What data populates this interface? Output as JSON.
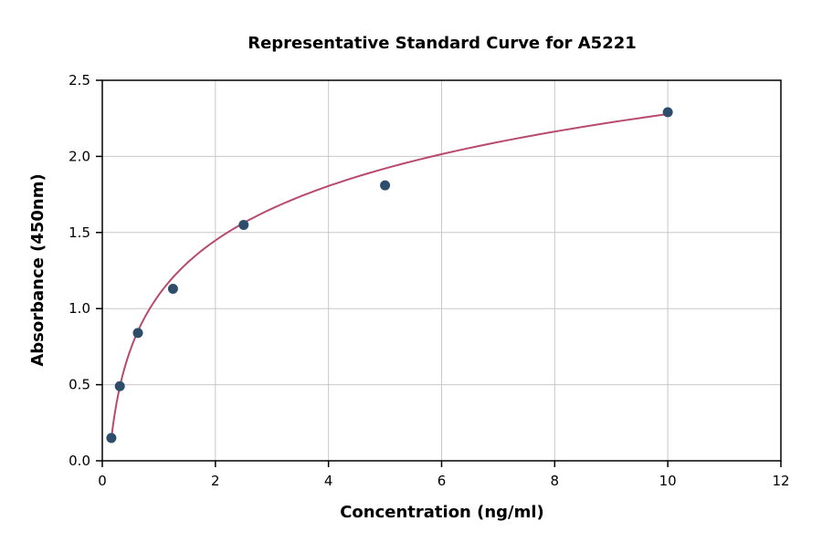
{
  "chart_data": {
    "type": "scatter",
    "title": "Representative Standard Curve for A5221",
    "xlabel": "Concentration (ng/ml)",
    "ylabel": "Absorbance (450nm)",
    "xlim": [
      0,
      12
    ],
    "ylim": [
      0,
      2.5
    ],
    "xticks": [
      0,
      2,
      4,
      6,
      8,
      10,
      12
    ],
    "yticks": [
      0.0,
      0.5,
      1.0,
      1.5,
      2.0,
      2.5
    ],
    "grid": true,
    "points": [
      {
        "x": 0.16,
        "y": 0.15
      },
      {
        "x": 0.31,
        "y": 0.49
      },
      {
        "x": 0.63,
        "y": 0.84
      },
      {
        "x": 1.25,
        "y": 1.13
      },
      {
        "x": 2.5,
        "y": 1.55
      },
      {
        "x": 5.0,
        "y": 1.81
      },
      {
        "x": 10.0,
        "y": 2.29
      }
    ],
    "fit_curve": {
      "type": "logarithmic",
      "equation": "y = 0.516*ln(x) + 1.09",
      "a": 0.516,
      "b": 1.09,
      "x_start": 0.16,
      "x_end": 10.0
    },
    "colors": {
      "point": "#2e4d6b",
      "curve": "#b84a6e",
      "grid": "#c8c8c8",
      "axis": "#000000",
      "background": "#ffffff"
    }
  }
}
